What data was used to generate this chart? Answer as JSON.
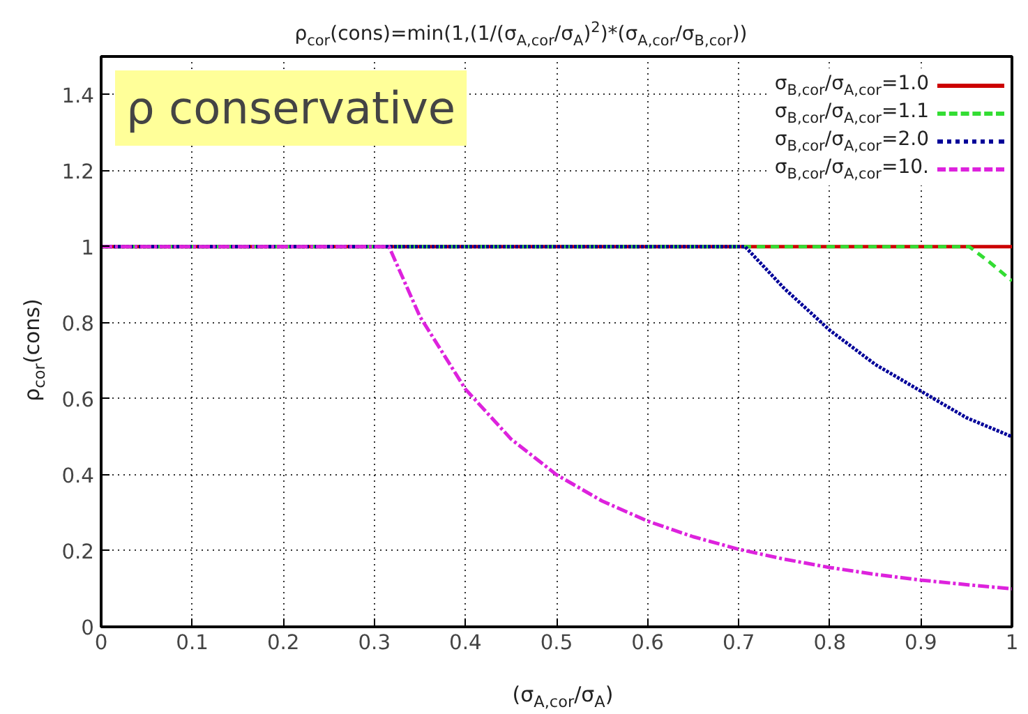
{
  "chart_data": {
    "type": "line",
    "title": "ρ$_{cor}$(cons)=min(1,(1/(σ$_{A,cor}$/σ$_{A}$)$^{2}$)*(σ$_{A,cor}$/σ$_{B,cor}$))",
    "xlabel": "(σ$_{A,cor}$/σ$_{A}$)",
    "ylabel": "ρ$_{cor}$(cons)",
    "annotations": [
      "ρ conservative"
    ],
    "xlim": [
      0,
      1
    ],
    "ylim": [
      0,
      1.5
    ],
    "xticks": [
      0,
      0.1,
      0.2,
      0.3,
      0.4,
      0.5,
      0.6,
      0.7,
      0.8,
      0.9,
      1
    ],
    "yticks": [
      0,
      0.2,
      0.4,
      0.6,
      0.8,
      1,
      1.2,
      1.4
    ],
    "grid": true,
    "legend": "top right",
    "series": [
      {
        "name": "σ$_{B,cor}$/σ$_{A,cor}$=1.0",
        "color": "#cc0000",
        "line_style": "solid",
        "x": [
          0,
          1
        ],
        "values": [
          1,
          1
        ]
      },
      {
        "name": "σ$_{B,cor}$/σ$_{A,cor}$=1.1",
        "color": "#33dd33",
        "line_style": "dashed",
        "x": [
          0,
          0.953,
          0.975,
          1
        ],
        "values": [
          1,
          1,
          0.96,
          0.91
        ]
      },
      {
        "name": "σ$_{B,cor}$/σ$_{A,cor}$=2.0",
        "color": "#000099",
        "line_style": "dotted",
        "x": [
          0,
          0.707,
          0.75,
          0.8,
          0.85,
          0.9,
          0.95,
          1
        ],
        "values": [
          1,
          1,
          0.89,
          0.78,
          0.69,
          0.62,
          0.55,
          0.5
        ]
      },
      {
        "name": "σ$_{B,cor}$/σ$_{A,cor}$=10.",
        "color": "#dd22dd",
        "line_style": "dashed",
        "x": [
          0,
          0.316,
          0.35,
          0.4,
          0.45,
          0.5,
          0.55,
          0.6,
          0.65,
          0.7,
          0.75,
          0.8,
          0.85,
          0.9,
          0.95,
          1
        ],
        "values": [
          1,
          1,
          0.816,
          0.625,
          0.494,
          0.4,
          0.331,
          0.278,
          0.237,
          0.204,
          0.178,
          0.156,
          0.138,
          0.123,
          0.111,
          0.1
        ]
      }
    ]
  }
}
